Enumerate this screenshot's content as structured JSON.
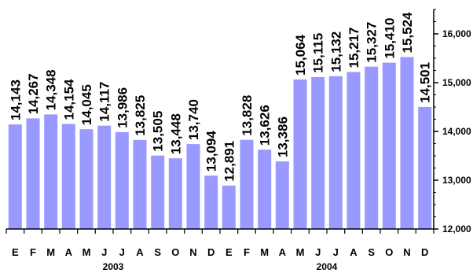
{
  "chart_data": {
    "type": "bar",
    "title": "",
    "xlabel": "",
    "ylabel": "",
    "ylim": [
      12000,
      16500
    ],
    "yticks": [
      12000,
      13000,
      14000,
      15000,
      16000
    ],
    "ytick_labels": [
      "12,000",
      "13,000",
      "14,000",
      "15,000",
      "16,000"
    ],
    "y_axis_side": "right",
    "grid": false,
    "bar_color": "#9999ff",
    "categories": [
      "E",
      "F",
      "M",
      "A",
      "M",
      "J",
      "J",
      "A",
      "S",
      "O",
      "N",
      "D",
      "E",
      "F",
      "M",
      "A",
      "M",
      "J",
      "J",
      "A",
      "S",
      "O",
      "N",
      "D"
    ],
    "values": [
      14143,
      14267,
      14348,
      14154,
      14045,
      14117,
      13986,
      13825,
      13505,
      13448,
      13740,
      13094,
      12891,
      13828,
      13626,
      13386,
      15064,
      15115,
      15132,
      15217,
      15327,
      15410,
      15524,
      14501
    ],
    "data_labels": [
      "14,143",
      "14,267",
      "14,348",
      "14,154",
      "14,045",
      "14,117",
      "13,986",
      "13,825",
      "13,505",
      "13,448",
      "13,740",
      "13,094",
      "12,891",
      "13,828",
      "13,626",
      "13,386",
      "15,064",
      "15,115",
      "15,132",
      "15,217",
      "15,327",
      "15,410",
      "15,524",
      "14,501"
    ],
    "year_groups": [
      {
        "label": "2003",
        "start": 0,
        "end": 11
      },
      {
        "label": "2004",
        "start": 12,
        "end": 23
      }
    ]
  }
}
